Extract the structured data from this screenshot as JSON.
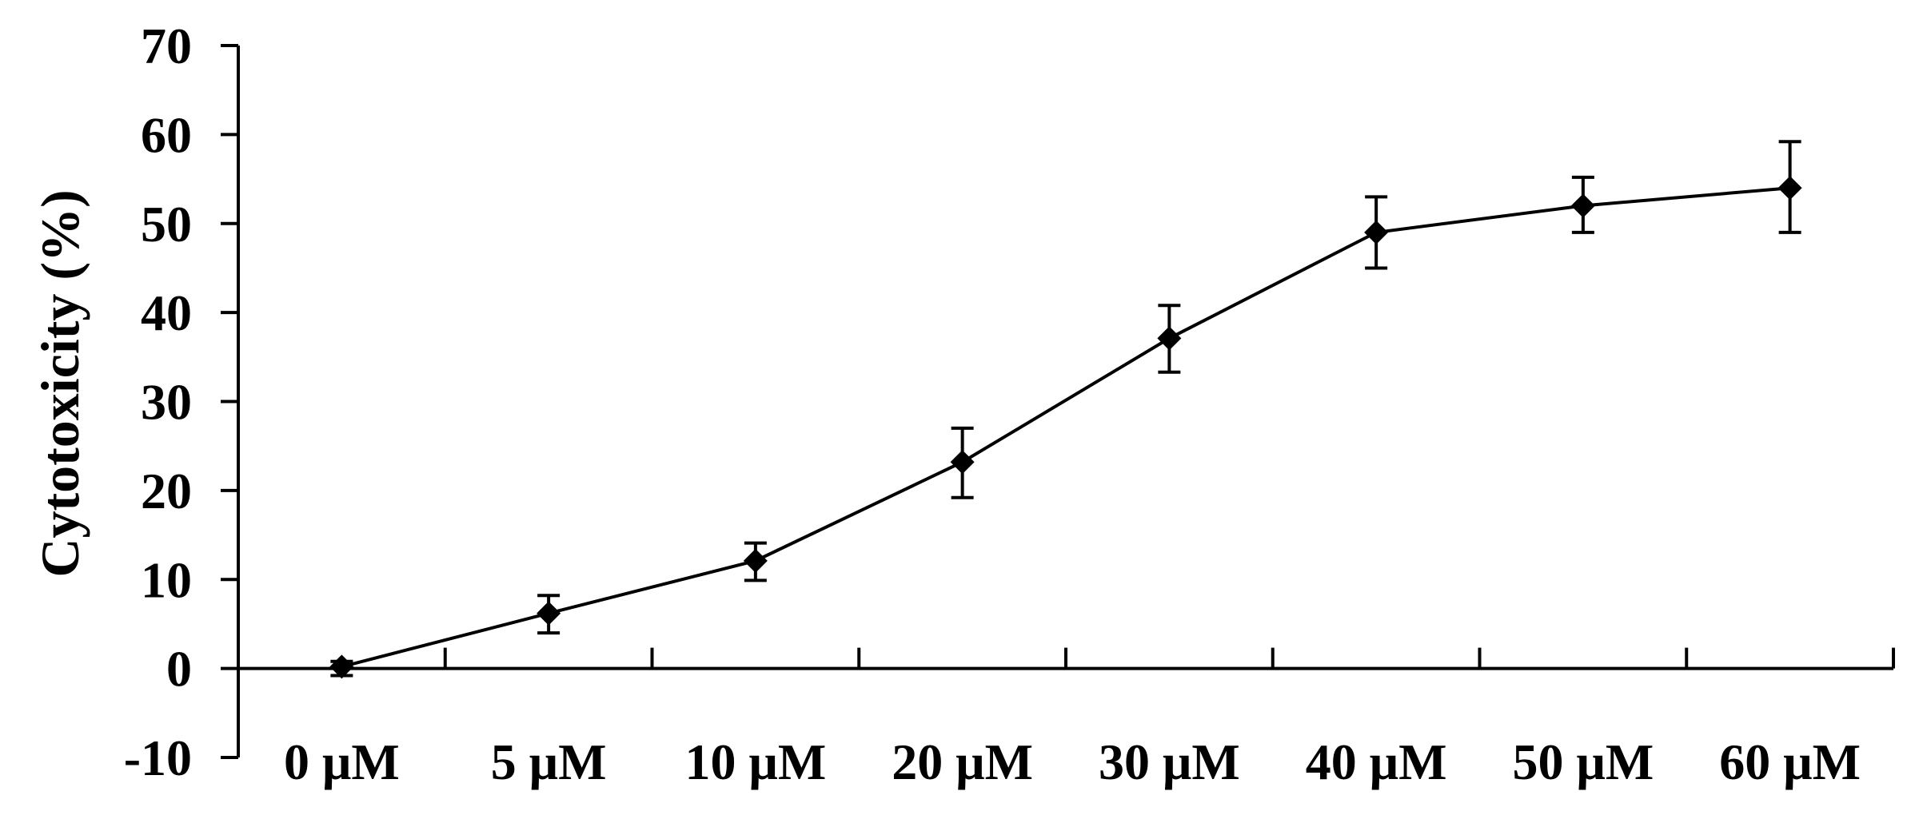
{
  "chart_data": {
    "type": "line",
    "categories": [
      "0 μM",
      "5 μM",
      "10 μM",
      "20 μM",
      "30 μM",
      "40 μM",
      "50 μM",
      "60 μM"
    ],
    "series": [
      {
        "values": [
          0.2,
          6.2,
          12.1,
          23.2,
          37.1,
          49.0,
          52.0,
          54.0
        ],
        "error_low": [
          1.0,
          2.2,
          2.2,
          4.0,
          3.8,
          4.0,
          3.0,
          5.0
        ],
        "error_high": [
          0.6,
          2.0,
          2.0,
          3.8,
          3.7,
          4.0,
          3.2,
          5.2
        ]
      }
    ],
    "ylabel": "Cytotoxicity (%)",
    "xlabel": "",
    "ylim": [
      -10,
      70
    ],
    "yticks": [
      "-10",
      "0",
      "10",
      "20",
      "30",
      "40",
      "50",
      "60",
      "70"
    ],
    "marker": "diamond",
    "grid": false,
    "colors": {
      "line": "#000000",
      "marker": "#000000"
    }
  }
}
